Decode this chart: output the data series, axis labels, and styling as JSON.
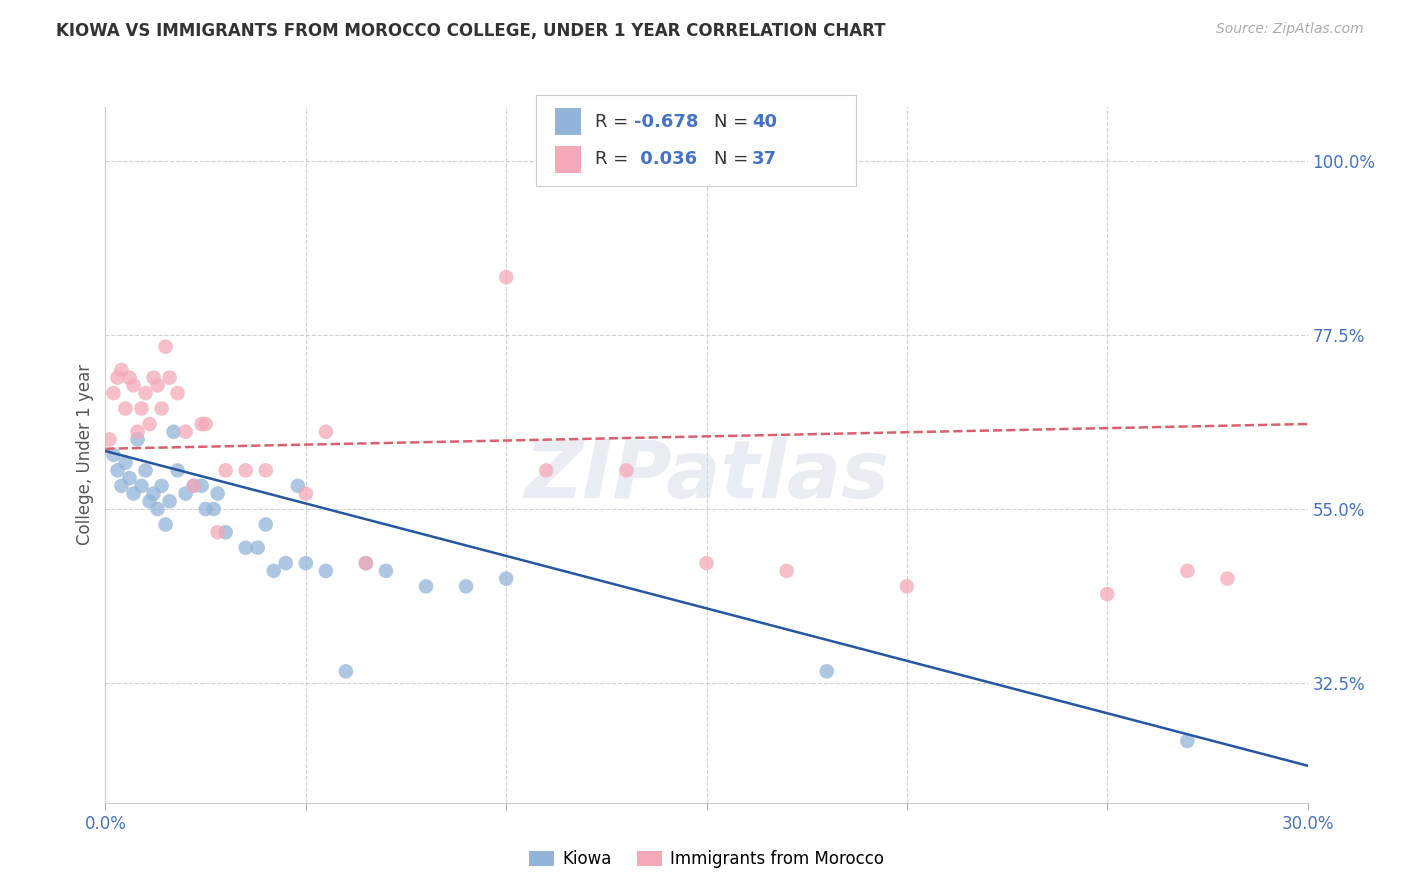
{
  "title": "KIOWA VS IMMIGRANTS FROM MOROCCO COLLEGE, UNDER 1 YEAR CORRELATION CHART",
  "source": "Source: ZipAtlas.com",
  "ylabel": "College, Under 1 year",
  "legend_label1": "Kiowa",
  "legend_label2": "Immigrants from Morocco",
  "x_min": 0.0,
  "x_max": 0.3,
  "y_min": 0.17,
  "y_max": 1.07,
  "yticks": [
    0.325,
    0.55,
    0.775,
    1.0
  ],
  "ytick_labels": [
    "32.5%",
    "55.0%",
    "77.5%",
    "100.0%"
  ],
  "blue_color": "#92B4D8",
  "pink_color": "#F4A8B8",
  "blue_line_color": "#2457A0",
  "pink_line_color": "#D96070",
  "background_color": "#ffffff",
  "watermark": "ZIPatlas",
  "r1": "-0.678",
  "n1": "40",
  "r2": "0.036",
  "n2": "37",
  "kiowa_x": [
    0.002,
    0.003,
    0.004,
    0.005,
    0.006,
    0.007,
    0.008,
    0.009,
    0.01,
    0.011,
    0.012,
    0.013,
    0.014,
    0.015,
    0.016,
    0.017,
    0.018,
    0.02,
    0.022,
    0.024,
    0.025,
    0.027,
    0.028,
    0.03,
    0.035,
    0.038,
    0.04,
    0.042,
    0.045,
    0.048,
    0.05,
    0.055,
    0.06,
    0.065,
    0.07,
    0.08,
    0.09,
    0.1,
    0.18,
    0.27
  ],
  "kiowa_y": [
    0.62,
    0.6,
    0.58,
    0.61,
    0.59,
    0.57,
    0.64,
    0.58,
    0.6,
    0.56,
    0.57,
    0.55,
    0.58,
    0.53,
    0.56,
    0.65,
    0.6,
    0.57,
    0.58,
    0.58,
    0.55,
    0.55,
    0.57,
    0.52,
    0.5,
    0.5,
    0.53,
    0.47,
    0.48,
    0.58,
    0.48,
    0.47,
    0.34,
    0.48,
    0.47,
    0.45,
    0.45,
    0.46,
    0.34,
    0.25
  ],
  "morocco_x": [
    0.001,
    0.002,
    0.003,
    0.004,
    0.005,
    0.006,
    0.007,
    0.008,
    0.009,
    0.01,
    0.011,
    0.012,
    0.013,
    0.014,
    0.015,
    0.016,
    0.018,
    0.02,
    0.022,
    0.024,
    0.025,
    0.028,
    0.03,
    0.035,
    0.04,
    0.05,
    0.055,
    0.065,
    0.1,
    0.11,
    0.13,
    0.15,
    0.17,
    0.2,
    0.25,
    0.27,
    0.28
  ],
  "morocco_y": [
    0.64,
    0.7,
    0.72,
    0.73,
    0.68,
    0.72,
    0.71,
    0.65,
    0.68,
    0.7,
    0.66,
    0.72,
    0.71,
    0.68,
    0.76,
    0.72,
    0.7,
    0.65,
    0.58,
    0.66,
    0.66,
    0.52,
    0.6,
    0.6,
    0.6,
    0.57,
    0.65,
    0.48,
    0.85,
    0.6,
    0.6,
    0.48,
    0.47,
    0.45,
    0.44,
    0.47,
    0.46
  ],
  "kiowa_line_x": [
    0.0,
    0.3
  ],
  "kiowa_line_y": [
    0.625,
    0.218
  ],
  "morocco_line_x": [
    0.0,
    0.3
  ],
  "morocco_line_y": [
    0.628,
    0.66
  ]
}
